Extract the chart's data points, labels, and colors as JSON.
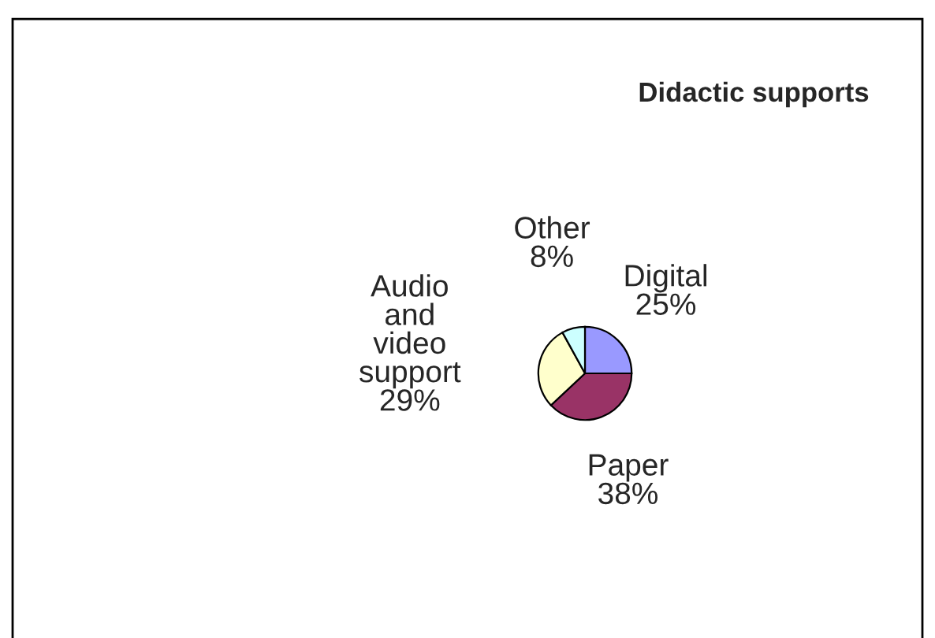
{
  "chart_data": {
    "type": "pie",
    "title": "Didactic supports",
    "categories": [
      "Digital",
      "Paper",
      "Audio and video support",
      "Other"
    ],
    "values": [
      25,
      38,
      29,
      8
    ],
    "value_labels": [
      "25%",
      "38%",
      "29%",
      "8%"
    ],
    "colors": [
      "#9999ff",
      "#993366",
      "#ffffcc",
      "#ccffff"
    ],
    "legend": false
  }
}
